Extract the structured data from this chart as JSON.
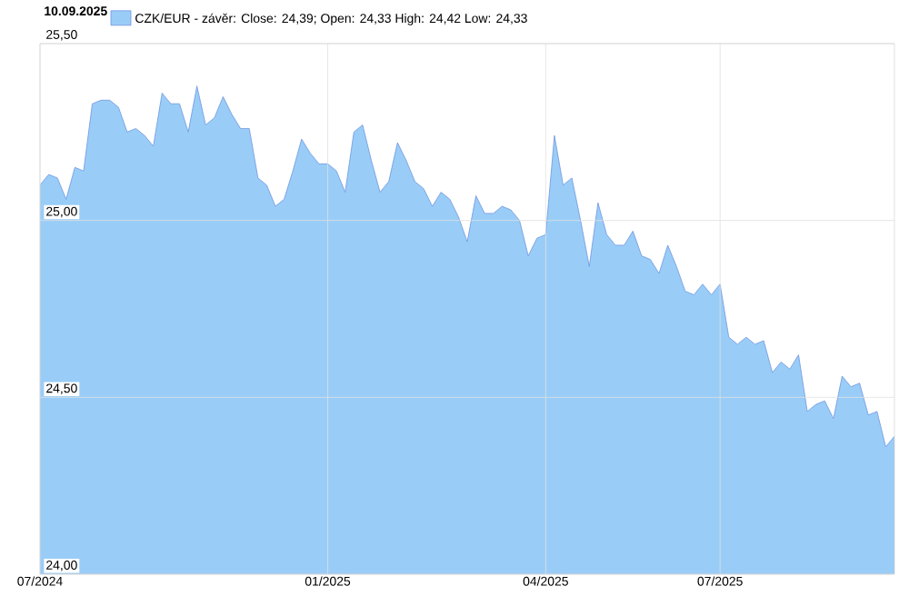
{
  "chart_data": {
    "type": "area",
    "title": "10.09.2025",
    "categories": [
      "07/2024",
      null,
      null,
      null,
      null,
      null,
      null,
      null,
      null,
      null,
      null,
      null,
      null,
      null,
      null,
      null,
      null,
      null,
      null,
      null,
      null,
      null,
      null,
      null,
      null,
      null,
      null,
      null,
      null,
      null,
      null,
      null,
      null,
      "01/2025",
      null,
      null,
      null,
      null,
      null,
      null,
      null,
      null,
      null,
      null,
      null,
      null,
      null,
      null,
      null,
      null,
      null,
      null,
      null,
      null,
      null,
      null,
      null,
      null,
      "04/2025",
      null,
      null,
      null,
      null,
      null,
      null,
      null,
      null,
      null,
      null,
      null,
      null,
      null,
      null,
      null,
      null,
      null,
      null,
      null,
      "07/2025",
      null,
      null,
      null,
      null,
      null,
      null,
      null,
      null,
      null,
      null,
      null,
      null,
      null,
      null,
      null,
      null,
      null,
      null,
      null,
      null
    ],
    "series": [
      {
        "name": "CZK/EUR - závěr: Close: 24,39; Open: 24,33 High: 24,42 Low: 24,33",
        "color": "#99cdf7",
        "values": [
          25.1,
          25.13,
          25.12,
          25.06,
          25.15,
          25.14,
          25.33,
          25.34,
          25.34,
          25.32,
          25.25,
          25.26,
          25.24,
          25.21,
          25.36,
          25.33,
          25.33,
          25.25,
          25.38,
          25.27,
          25.29,
          25.35,
          25.3,
          25.26,
          25.26,
          25.12,
          25.1,
          25.04,
          25.06,
          25.14,
          25.23,
          25.19,
          25.16,
          25.16,
          25.14,
          25.08,
          25.25,
          25.27,
          25.17,
          25.08,
          25.11,
          25.22,
          25.17,
          25.11,
          25.09,
          25.04,
          25.08,
          25.06,
          25.01,
          24.94,
          25.07,
          25.02,
          25.02,
          25.04,
          25.03,
          25.0,
          24.9,
          24.95,
          24.96,
          25.24,
          25.1,
          25.12,
          25.0,
          24.87,
          25.05,
          24.96,
          24.93,
          24.93,
          24.97,
          24.9,
          24.89,
          24.85,
          24.93,
          24.87,
          24.8,
          24.79,
          24.82,
          24.79,
          24.82,
          24.67,
          24.65,
          24.67,
          24.65,
          24.66,
          24.57,
          24.6,
          24.58,
          24.62,
          24.46,
          24.48,
          24.49,
          24.44,
          24.56,
          24.53,
          24.54,
          24.45,
          24.46,
          24.36,
          24.39
        ]
      }
    ],
    "ylim": [
      24.0,
      25.5
    ],
    "yticks": [
      {
        "value": 24.0,
        "label": "24,00"
      },
      {
        "value": 24.5,
        "label": "24,50"
      },
      {
        "value": 25.0,
        "label": "25,00"
      },
      {
        "value": 25.5,
        "label": "25,50"
      }
    ],
    "grid": true,
    "legend": "top left"
  }
}
